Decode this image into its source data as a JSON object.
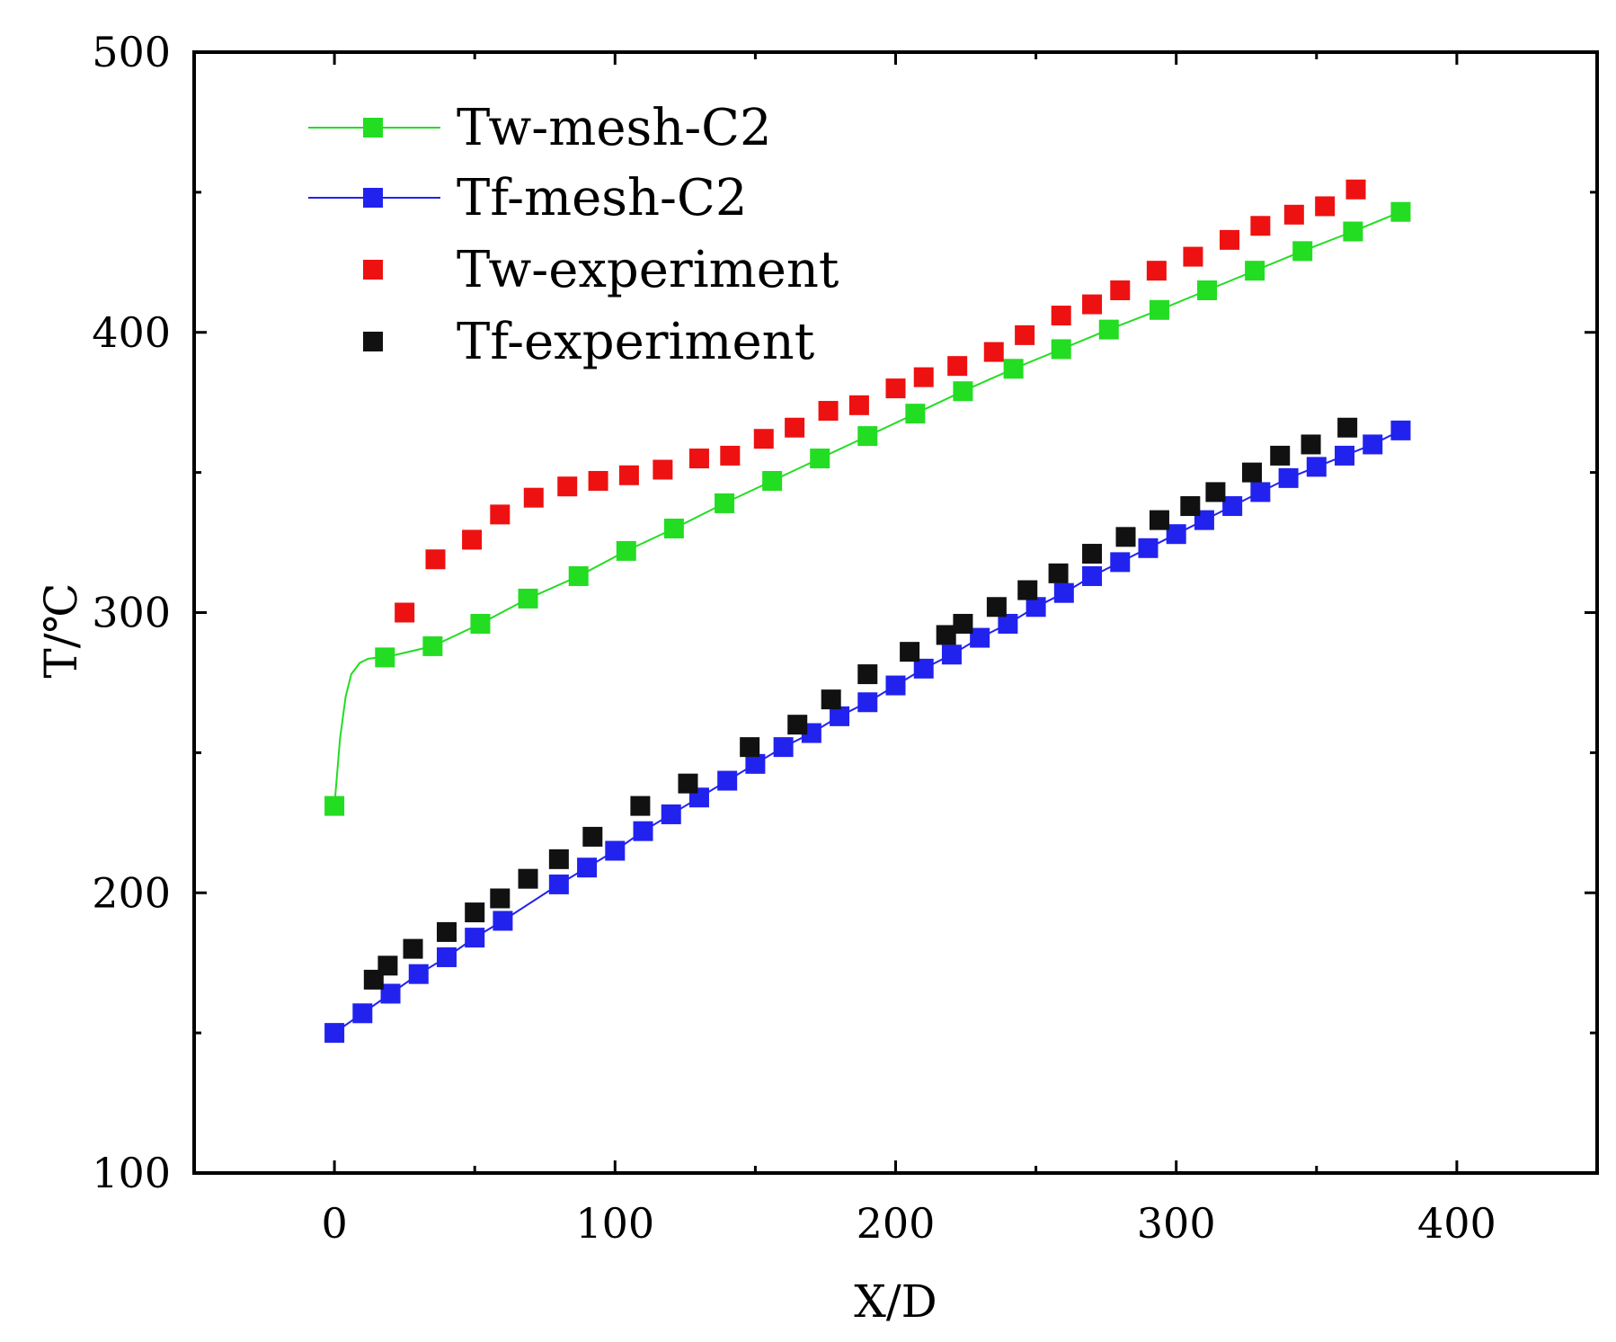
{
  "chart_data": {
    "type": "scatter",
    "xlabel": "X/D",
    "ylabel": "T/℃",
    "xlim": [
      -50,
      450
    ],
    "ylim": [
      100,
      500
    ],
    "xticks": [
      0,
      100,
      200,
      300,
      400
    ],
    "yticks": [
      100,
      200,
      300,
      400,
      500
    ],
    "grid": false,
    "legend_position": "top-left",
    "series": [
      {
        "name": "Tw-mesh-C2",
        "style": "line+marker",
        "color": "#22dd22",
        "curve_x": [
          0,
          2,
          4,
          6,
          9,
          12,
          16,
          18
        ],
        "curve_y": [
          231,
          255,
          270,
          278,
          282,
          283.5,
          284,
          284
        ],
        "x": [
          0,
          18,
          35,
          52,
          69,
          87,
          104,
          121,
          139,
          156,
          173,
          190,
          207,
          224,
          242,
          259,
          276,
          294,
          311,
          328,
          345,
          363,
          380
        ],
        "y": [
          231,
          284,
          288,
          296,
          305,
          313,
          322,
          330,
          339,
          347,
          355,
          363,
          371,
          379,
          387,
          394,
          401,
          408,
          415,
          422,
          429,
          436,
          443
        ]
      },
      {
        "name": "Tf-mesh-C2",
        "style": "line+marker",
        "color": "#2222ee",
        "x": [
          0,
          10,
          20,
          30,
          40,
          50,
          60,
          80,
          90,
          100,
          110,
          120,
          130,
          140,
          150,
          160,
          170,
          180,
          190,
          200,
          210,
          220,
          230,
          240,
          250,
          260,
          270,
          280,
          290,
          300,
          310,
          320,
          330,
          340,
          350,
          360,
          370,
          380
        ],
        "y": [
          150,
          157,
          164,
          171,
          177,
          184,
          190,
          203,
          209,
          215,
          222,
          228,
          234,
          240,
          246,
          252,
          257,
          263,
          268,
          274,
          280,
          285,
          291,
          296,
          302,
          307,
          313,
          318,
          323,
          328,
          333,
          338,
          343,
          348,
          352,
          356,
          360,
          365
        ]
      },
      {
        "name": "Tw-experiment",
        "style": "marker",
        "color": "#ee1111",
        "x": [
          25,
          36,
          49,
          59,
          71,
          83,
          94,
          105,
          117,
          130,
          141,
          153,
          164,
          176,
          187,
          200,
          210,
          222,
          235,
          246,
          259,
          270,
          280,
          293,
          306,
          319,
          330,
          342,
          353,
          364
        ],
        "y": [
          300,
          319,
          326,
          335,
          341,
          345,
          347,
          349,
          351,
          355,
          356,
          362,
          366,
          372,
          374,
          380,
          384,
          388,
          393,
          399,
          406,
          410,
          415,
          422,
          427,
          433,
          438,
          442,
          445,
          451
        ]
      },
      {
        "name": "Tf-experiment",
        "style": "marker",
        "color": "#111111",
        "x": [
          14,
          19,
          28,
          40,
          50,
          59,
          69,
          80,
          92,
          109,
          126,
          148,
          165,
          177,
          190,
          205,
          218,
          224,
          236,
          247,
          258,
          270,
          282,
          294,
          305,
          314,
          327,
          337,
          348,
          361
        ],
        "y": [
          169,
          174,
          180,
          186,
          193,
          198,
          205,
          212,
          220,
          231,
          239,
          252,
          260,
          269,
          278,
          286,
          292,
          296,
          302,
          308,
          314,
          321,
          327,
          333,
          338,
          343,
          350,
          356,
          360,
          366
        ]
      }
    ]
  }
}
